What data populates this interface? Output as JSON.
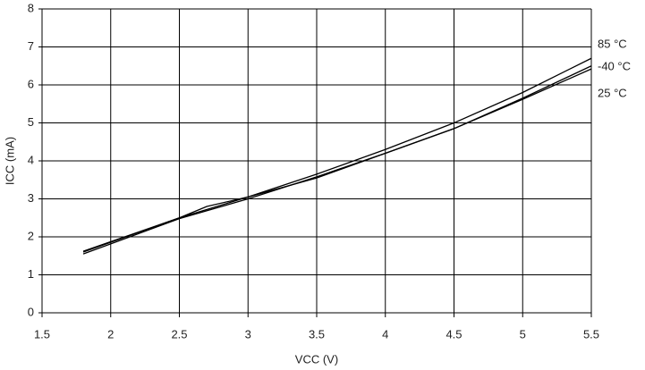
{
  "chart_data": {
    "type": "line",
    "x_label": "VCC (V)",
    "y_label": "ICC (mA)",
    "xlim": [
      1.5,
      5.5
    ],
    "xticks": [
      1.5,
      2,
      2.5,
      3,
      3.5,
      4,
      4.5,
      5,
      5.5
    ],
    "ylim": [
      0,
      8
    ],
    "yticks": [
      0,
      1,
      2,
      3,
      4,
      5,
      6,
      7,
      8
    ],
    "grid": true,
    "series": [
      {
        "name": "85 °C",
        "color": "#000000",
        "x": [
          1.8,
          2.5,
          3,
          3.5,
          4,
          4.5,
          5,
          5.5
        ],
        "values": [
          1.62,
          2.5,
          3.05,
          3.65,
          4.3,
          5.0,
          5.8,
          6.7
        ]
      },
      {
        "name": "-40 °C",
        "color": "#000000",
        "x": [
          1.8,
          2.5,
          2.7,
          3,
          3.5,
          4,
          4.5,
          5,
          5.5
        ],
        "values": [
          1.6,
          2.5,
          2.8,
          3.05,
          3.55,
          4.2,
          4.85,
          5.65,
          6.5
        ]
      },
      {
        "name": "25 °C",
        "color": "#000000",
        "x": [
          1.8,
          2.5,
          3,
          3.5,
          4,
          4.5,
          5,
          5.5
        ],
        "values": [
          1.55,
          2.48,
          3.0,
          3.58,
          4.2,
          4.85,
          5.62,
          6.42
        ]
      }
    ]
  }
}
